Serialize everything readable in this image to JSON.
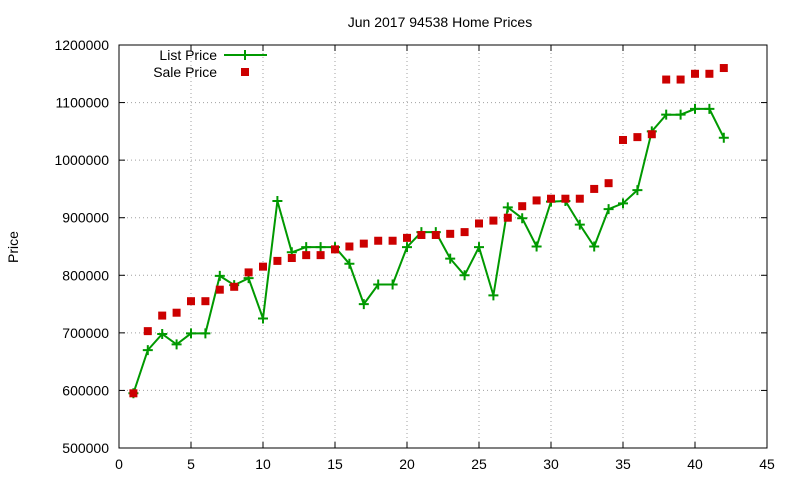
{
  "chart_data": {
    "type": "line",
    "title": "Jun 2017 94538 Home Prices",
    "xlabel": "",
    "ylabel": "Price",
    "xlim": [
      0,
      45
    ],
    "ylim": [
      500000,
      1200000
    ],
    "xticks": [
      0,
      5,
      10,
      15,
      20,
      25,
      30,
      35,
      40,
      45
    ],
    "yticks": [
      500000,
      600000,
      700000,
      800000,
      900000,
      1000000,
      1100000,
      1200000
    ],
    "grid": true,
    "legend_position": "top-left",
    "series": [
      {
        "name": "List Price",
        "style": "line-points",
        "marker": "plus",
        "color": "#009900",
        "x": [
          1,
          2,
          3,
          4,
          5,
          6,
          7,
          8,
          9,
          10,
          11,
          12,
          13,
          14,
          15,
          16,
          17,
          18,
          19,
          20,
          21,
          22,
          23,
          24,
          25,
          26,
          27,
          28,
          29,
          30,
          31,
          32,
          33,
          34,
          35,
          36,
          37,
          38,
          39,
          40,
          41,
          42
        ],
        "y": [
          595000,
          670000,
          698000,
          680000,
          699000,
          699000,
          799000,
          783000,
          795000,
          725000,
          929000,
          840000,
          849000,
          849000,
          849000,
          820000,
          750000,
          784000,
          784000,
          849000,
          875000,
          875000,
          829000,
          800000,
          849000,
          765000,
          918000,
          899000,
          850000,
          928000,
          929000,
          888000,
          850000,
          915000,
          925000,
          948000,
          1050000,
          1079000,
          1079000,
          1089000,
          1089000,
          1039000
        ]
      },
      {
        "name": "Sale Price",
        "style": "points",
        "marker": "square",
        "color": "#cc0000",
        "x": [
          1,
          2,
          3,
          4,
          5,
          6,
          7,
          8,
          9,
          10,
          11,
          12,
          13,
          14,
          15,
          16,
          17,
          18,
          19,
          20,
          21,
          22,
          23,
          24,
          25,
          26,
          27,
          28,
          29,
          30,
          31,
          32,
          33,
          34,
          35,
          36,
          37,
          38,
          39,
          40,
          41,
          42
        ],
        "y": [
          595000,
          703000,
          730000,
          735000,
          755000,
          755000,
          775000,
          780000,
          805000,
          815000,
          825000,
          830000,
          835000,
          835000,
          845000,
          850000,
          855000,
          860000,
          860000,
          865000,
          870000,
          870000,
          872000,
          875000,
          890000,
          895000,
          900000,
          920000,
          930000,
          933000,
          933000,
          933000,
          950000,
          960000,
          1035000,
          1040000,
          1045000,
          1140000,
          1140000,
          1150000,
          1150000,
          1160000
        ]
      }
    ]
  }
}
